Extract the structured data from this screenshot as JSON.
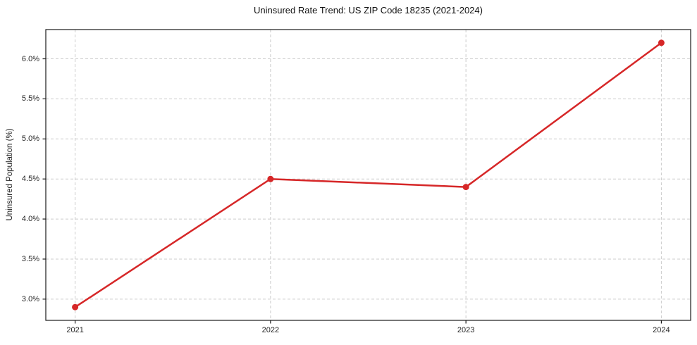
{
  "chart_data": {
    "type": "line",
    "title": "Uninsured Rate Trend: US ZIP Code 18235 (2021-2024)",
    "xlabel": "",
    "ylabel": "Uninsured Population (%)",
    "x": [
      2021,
      2022,
      2023,
      2024
    ],
    "values": [
      2.9,
      4.5,
      4.4,
      6.2
    ],
    "xticks": [
      2021,
      2022,
      2023,
      2024
    ],
    "xtick_labels": [
      "2021",
      "2022",
      "2023",
      "2024"
    ],
    "yticks": [
      3.0,
      3.5,
      4.0,
      4.5,
      5.0,
      5.5,
      6.0
    ],
    "ytick_labels": [
      "3.0%",
      "3.5%",
      "4.0%",
      "4.5%",
      "5.0%",
      "5.5%",
      "6.0%"
    ],
    "xlim": [
      2020.85,
      2024.15
    ],
    "ylim": [
      2.735,
      6.365
    ],
    "grid": "dashed",
    "legend": "none",
    "colors": {
      "line": "#d62728",
      "marker": "#d62728",
      "grid": "#cccccc",
      "spine": "#1a1a1a",
      "text": "#262626"
    }
  }
}
